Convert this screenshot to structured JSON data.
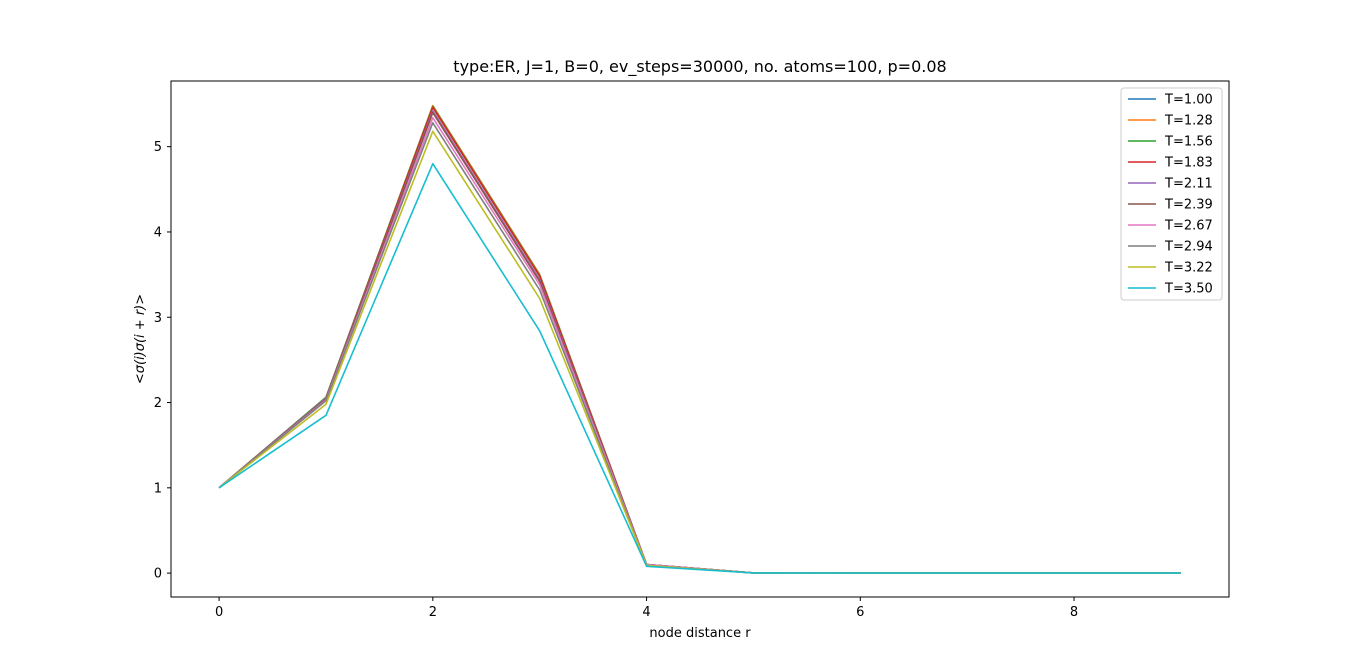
{
  "chart_data": {
    "type": "line",
    "title": "type:ER, J=1, B=0, ev_steps=30000, no. atoms=100, p=0.08",
    "xlabel": "node distance r",
    "ylabel": "<σ(i)σ(i + r)>",
    "xlim": [
      -0.45,
      9.45
    ],
    "ylim": [
      -0.28,
      5.77
    ],
    "xticks": [
      0,
      2,
      4,
      6,
      8
    ],
    "yticks": [
      0,
      1,
      2,
      3,
      4,
      5
    ],
    "grid": false,
    "legend_position": "top-right",
    "x": [
      0,
      1,
      2,
      3,
      4,
      5,
      6,
      7,
      8,
      9
    ],
    "series": [
      {
        "name": "T=1.00",
        "color": "#1f77b4",
        "values": [
          1,
          2.06,
          5.48,
          3.5,
          0.1,
          0.003,
          0,
          0,
          0,
          0
        ]
      },
      {
        "name": "T=1.28",
        "color": "#ff7f0e",
        "values": [
          1,
          2.06,
          5.48,
          3.5,
          0.1,
          0.003,
          0,
          0,
          0,
          0
        ]
      },
      {
        "name": "T=1.56",
        "color": "#2ca02c",
        "values": [
          1,
          2.06,
          5.47,
          3.49,
          0.1,
          0.003,
          0,
          0,
          0,
          0
        ]
      },
      {
        "name": "T=1.83",
        "color": "#d62728",
        "values": [
          1,
          2.05,
          5.46,
          3.48,
          0.1,
          0.003,
          0,
          0,
          0,
          0
        ]
      },
      {
        "name": "T=2.11",
        "color": "#9467bd",
        "values": [
          1,
          2.05,
          5.42,
          3.44,
          0.1,
          0.003,
          0,
          0,
          0,
          0
        ]
      },
      {
        "name": "T=2.39",
        "color": "#8c564b",
        "values": [
          1,
          2.04,
          5.4,
          3.42,
          0.1,
          0.003,
          0,
          0,
          0,
          0
        ]
      },
      {
        "name": "T=2.67",
        "color": "#e377c2",
        "values": [
          1,
          2.03,
          5.34,
          3.38,
          0.1,
          0.003,
          0,
          0,
          0,
          0
        ]
      },
      {
        "name": "T=2.94",
        "color": "#7f7f7f",
        "values": [
          1,
          2.02,
          5.28,
          3.32,
          0.09,
          0.003,
          0,
          0,
          0,
          0
        ]
      },
      {
        "name": "T=3.22",
        "color": "#bcbd22",
        "values": [
          1,
          1.98,
          5.18,
          3.22,
          0.09,
          0.003,
          0,
          0,
          0,
          0
        ]
      },
      {
        "name": "T=3.50",
        "color": "#17becf",
        "values": [
          1,
          1.85,
          4.8,
          2.84,
          0.08,
          0.003,
          0,
          0,
          0,
          0
        ]
      }
    ]
  }
}
